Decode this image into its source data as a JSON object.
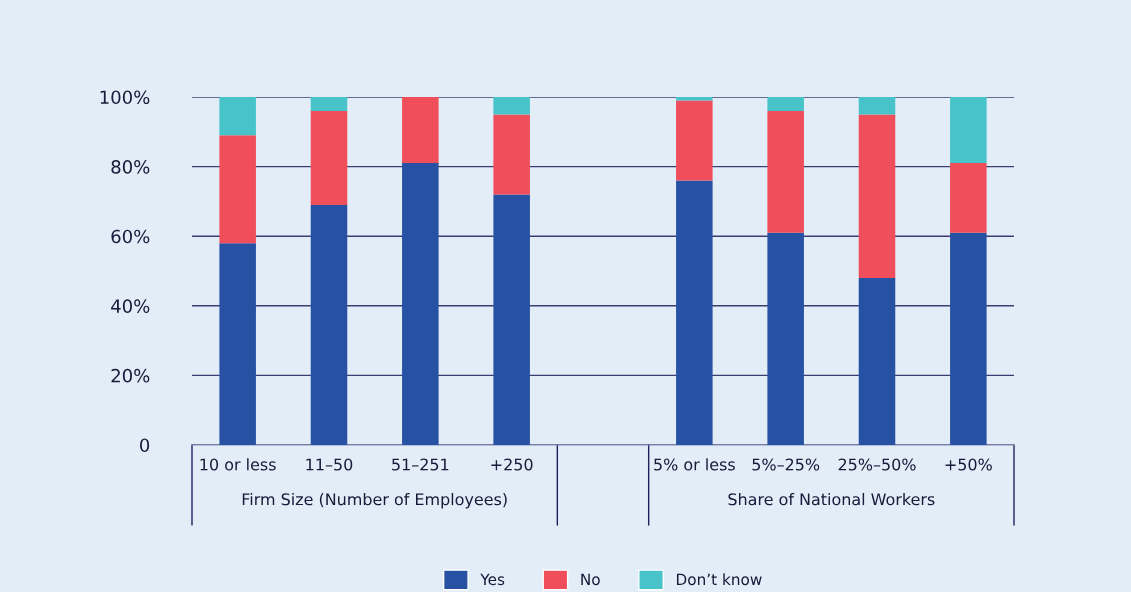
{
  "chart_data": {
    "type": "bar",
    "stacked": true,
    "categories": [
      "10 or less",
      "11–50",
      "51–251",
      "+250",
      null,
      "5% or less",
      "5%–25%",
      "25%–50%",
      "+50%"
    ],
    "series": [
      {
        "name": "Yes",
        "color": "#2751a3",
        "values": [
          58,
          69,
          81,
          72,
          null,
          76,
          61,
          48,
          61
        ]
      },
      {
        "name": "No",
        "color": "#f04e5a",
        "values": [
          31,
          27,
          19,
          23,
          null,
          23,
          35,
          47,
          20
        ]
      },
      {
        "name": "Don’t know",
        "color": "#47c3c9",
        "values": [
          11,
          4,
          0,
          5,
          null,
          1,
          4,
          5,
          19
        ]
      }
    ],
    "ylim": [
      0,
      100
    ],
    "yticks": [
      {
        "value": 0,
        "label": "0"
      },
      {
        "value": 20,
        "label": "20%"
      },
      {
        "value": 40,
        "label": "40%"
      },
      {
        "value": 60,
        "label": "60%"
      },
      {
        "value": 80,
        "label": "80%"
      },
      {
        "value": 100,
        "label": "100%"
      }
    ],
    "grid": "y",
    "legend": "bottom",
    "annotations": [
      "Firm Size (Number of Employees)",
      "Share of National Workers"
    ]
  }
}
